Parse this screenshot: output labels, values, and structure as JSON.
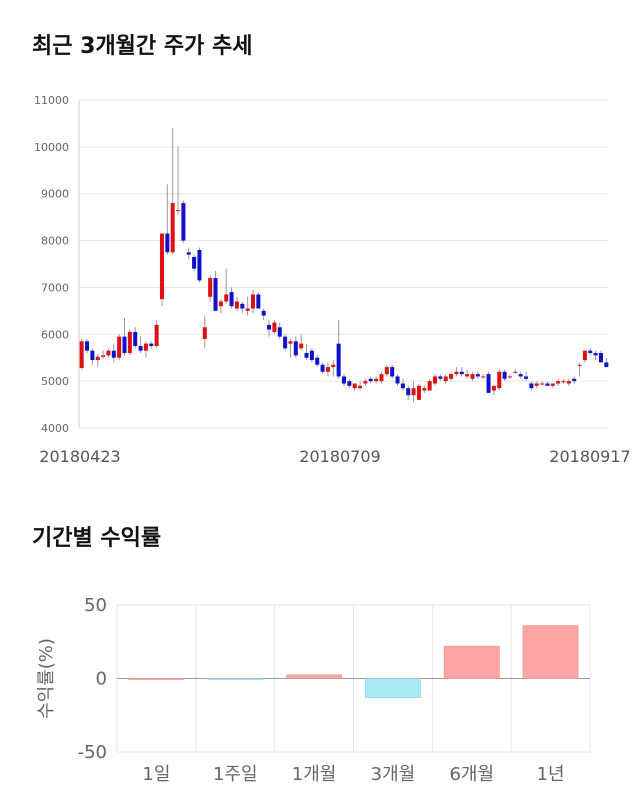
{
  "titles": {
    "candle": "최근 3개월간 주가 추세",
    "returns": "기간별 수익률"
  },
  "colors": {
    "up": "#dd1111",
    "down": "#1111cc",
    "wick": "#999999",
    "bar_positive": "#ffa5a5",
    "bar_negative": "#a7eaf2",
    "grid": "#e6e6e6"
  },
  "chart_data": [
    {
      "type": "candlestick",
      "ylim": [
        4000,
        11000
      ],
      "y_ticks": [
        "4000",
        "5000",
        "6000",
        "7000",
        "8000",
        "9000",
        "10000",
        "11000"
      ],
      "x_tick_labels": [
        "20180423",
        "20180709",
        "20180917"
      ],
      "grid": true,
      "series": [
        [
          5280,
          5900,
          5250,
          5850
        ],
        [
          5850,
          5900,
          5600,
          5650
        ],
        [
          5650,
          5700,
          5350,
          5450
        ],
        [
          5450,
          5580,
          5300,
          5520
        ],
        [
          5520,
          5650,
          5480,
          5550
        ],
        [
          5550,
          5700,
          5500,
          5650
        ],
        [
          5650,
          5800,
          5400,
          5500
        ],
        [
          5500,
          6000,
          5450,
          5950
        ],
        [
          5950,
          6350,
          5550,
          5600
        ],
        [
          5600,
          6100,
          5550,
          6050
        ],
        [
          6050,
          6150,
          5700,
          5750
        ],
        [
          5750,
          5950,
          5600,
          5650
        ],
        [
          5650,
          5850,
          5500,
          5800
        ],
        [
          5800,
          5850,
          5700,
          5750
        ],
        [
          5750,
          6300,
          5700,
          6200
        ],
        [
          6750,
          8150,
          6600,
          8150
        ],
        [
          8150,
          9200,
          7700,
          7750
        ],
        [
          7750,
          10400,
          7700,
          8800
        ],
        [
          8650,
          10000,
          8550,
          8650
        ],
        [
          8800,
          8850,
          7950,
          8000
        ],
        [
          7750,
          7850,
          7600,
          7700
        ],
        [
          7650,
          7700,
          7350,
          7400
        ],
        [
          7800,
          7850,
          7100,
          7150
        ],
        [
          5900,
          6400,
          5700,
          6150
        ],
        [
          6800,
          7250,
          6700,
          7200
        ],
        [
          7200,
          7350,
          6500,
          6500
        ],
        [
          6600,
          6750,
          6450,
          6700
        ],
        [
          6700,
          7400,
          6650,
          6850
        ],
        [
          6900,
          7000,
          6550,
          6600
        ],
        [
          6550,
          6800,
          6500,
          6700
        ],
        [
          6650,
          6700,
          6450,
          6550
        ],
        [
          6500,
          6800,
          6400,
          6550
        ],
        [
          6550,
          6950,
          6450,
          6850
        ],
        [
          6850,
          6900,
          6550,
          6550
        ],
        [
          6500,
          6550,
          6300,
          6400
        ],
        [
          6200,
          6300,
          5950,
          6100
        ],
        [
          6050,
          6300,
          6000,
          6250
        ],
        [
          6150,
          6250,
          5900,
          5950
        ],
        [
          5950,
          6000,
          5650,
          5700
        ],
        [
          5800,
          5900,
          5500,
          5850
        ],
        [
          5850,
          5950,
          5500,
          5550
        ],
        [
          5700,
          6000,
          5650,
          5800
        ],
        [
          5600,
          5800,
          5450,
          5500
        ],
        [
          5650,
          5700,
          5400,
          5450
        ],
        [
          5500,
          5550,
          5300,
          5350
        ],
        [
          5350,
          5400,
          5150,
          5200
        ],
        [
          5200,
          5400,
          5100,
          5300
        ],
        [
          5300,
          5450,
          5100,
          5350
        ],
        [
          5800,
          6300,
          5050,
          5100
        ],
        [
          5100,
          5150,
          4900,
          4950
        ],
        [
          5000,
          5050,
          4850,
          4900
        ],
        [
          4850,
          4950,
          4800,
          4950
        ],
        [
          4850,
          5000,
          4800,
          4900
        ],
        [
          4950,
          5050,
          4900,
          5000
        ],
        [
          5050,
          5100,
          4950,
          5000
        ],
        [
          5000,
          5100,
          4950,
          5050
        ],
        [
          5000,
          5200,
          4950,
          5150
        ],
        [
          5150,
          5350,
          5100,
          5300
        ],
        [
          5300,
          5350,
          5050,
          5100
        ],
        [
          5100,
          5150,
          4900,
          4950
        ],
        [
          4950,
          5050,
          4800,
          4850
        ],
        [
          4850,
          4900,
          4600,
          4700
        ],
        [
          4700,
          5000,
          4550,
          4850
        ],
        [
          4600,
          4950,
          4600,
          4900
        ],
        [
          4800,
          4900,
          4750,
          4850
        ],
        [
          4800,
          5050,
          4800,
          5000
        ],
        [
          4950,
          5150,
          4900,
          5100
        ],
        [
          5100,
          5150,
          5000,
          5050
        ],
        [
          5000,
          5150,
          4950,
          5100
        ],
        [
          5050,
          5200,
          5000,
          5150
        ],
        [
          5150,
          5300,
          5100,
          5200
        ],
        [
          5200,
          5300,
          5100,
          5150
        ],
        [
          5100,
          5250,
          5050,
          5150
        ],
        [
          5050,
          5200,
          5000,
          5150
        ],
        [
          5150,
          5200,
          5050,
          5100
        ],
        [
          5100,
          5150,
          5050,
          5100
        ],
        [
          5150,
          5200,
          4750,
          4750
        ],
        [
          4800,
          4900,
          4700,
          4900
        ],
        [
          4850,
          5250,
          4800,
          5200
        ],
        [
          5200,
          5250,
          5000,
          5050
        ],
        [
          5100,
          5150,
          5050,
          5100
        ],
        [
          5200,
          5250,
          5150,
          5200
        ],
        [
          5150,
          5200,
          5050,
          5100
        ],
        [
          5100,
          5200,
          5000,
          5050
        ],
        [
          4950,
          5000,
          4800,
          4850
        ],
        [
          4900,
          5000,
          4850,
          4950
        ],
        [
          4950,
          5000,
          4900,
          4950
        ],
        [
          4950,
          5000,
          4900,
          4900
        ],
        [
          4900,
          4950,
          4850,
          4950
        ],
        [
          4950,
          5050,
          4900,
          5000
        ],
        [
          5000,
          5050,
          4950,
          5000
        ],
        [
          4950,
          5050,
          4900,
          5000
        ],
        [
          5050,
          5100,
          4950,
          5000
        ],
        [
          5350,
          5400,
          5100,
          5350
        ],
        [
          5450,
          5650,
          5400,
          5650
        ],
        [
          5650,
          5700,
          5550,
          5600
        ],
        [
          5600,
          5650,
          5450,
          5550
        ],
        [
          5600,
          5650,
          5400,
          5400
        ],
        [
          5400,
          5500,
          5300,
          5300
        ]
      ]
    },
    {
      "type": "bar",
      "categories": [
        "1일",
        "1주일",
        "1개월",
        "3개월",
        "6개월",
        "1년"
      ],
      "values": [
        0,
        -0.5,
        2.5,
        -13,
        22,
        36
      ],
      "ylim": [
        -50,
        50
      ],
      "y_ticks": [
        "50",
        "0",
        "-50"
      ],
      "ylabel": "수익률(%)",
      "grid": true
    }
  ]
}
